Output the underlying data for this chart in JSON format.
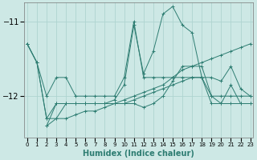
{
  "xlabel": "Humidex (Indice chaleur)",
  "bg_color": "#cde8e5",
  "grid_color": "#aed4d0",
  "line_color": "#2e7d72",
  "x_ticks": [
    0,
    1,
    2,
    3,
    4,
    5,
    6,
    7,
    8,
    9,
    10,
    11,
    12,
    13,
    14,
    15,
    16,
    17,
    18,
    19,
    20,
    21,
    22,
    23
  ],
  "ylim": [
    -12.55,
    -10.75
  ],
  "xlim": [
    -0.3,
    23.3
  ],
  "series": [
    {
      "x": [
        0,
        1,
        2,
        3,
        4,
        5,
        6,
        7,
        8,
        9,
        10,
        11,
        12,
        13,
        14,
        15,
        16,
        17,
        18,
        19,
        20,
        21,
        22,
        23
      ],
      "y": [
        -11.3,
        -11.55,
        -12.0,
        -11.75,
        -11.75,
        -12.0,
        -12.0,
        -12.0,
        -12.0,
        -12.0,
        -11.75,
        -11.0,
        -11.75,
        -11.75,
        -11.75,
        -11.75,
        -11.75,
        -11.75,
        -11.75,
        -12.0,
        -12.0,
        -12.0,
        -12.0,
        -12.0
      ]
    },
    {
      "x": [
        0,
        1,
        2,
        3,
        4,
        5,
        6,
        7,
        8,
        9,
        10,
        11,
        12,
        13,
        14,
        15,
        16,
        17,
        18,
        19,
        20,
        21,
        22,
        23
      ],
      "y": [
        -11.3,
        -11.55,
        -12.3,
        -12.3,
        -12.1,
        -12.1,
        -12.1,
        -12.1,
        -12.1,
        -12.05,
        -11.85,
        -11.05,
        -11.7,
        -11.4,
        -10.9,
        -10.8,
        -11.05,
        -11.15,
        -11.75,
        -12.1,
        -12.1,
        -11.85,
        -12.1,
        -12.1
      ]
    },
    {
      "x": [
        2,
        3,
        4,
        5,
        6,
        7,
        8,
        9,
        10,
        11,
        12,
        13,
        14,
        15,
        16,
        17,
        18,
        19,
        20,
        21,
        22,
        23
      ],
      "y": [
        -12.4,
        -12.3,
        -12.3,
        -12.25,
        -12.2,
        -12.2,
        -12.15,
        -12.1,
        -12.05,
        -12.0,
        -11.95,
        -11.9,
        -11.85,
        -11.75,
        -11.65,
        -11.6,
        -11.55,
        -11.5,
        -11.45,
        -11.4,
        -11.35,
        -11.3
      ]
    },
    {
      "x": [
        0,
        1,
        2,
        3,
        4,
        5,
        6,
        7,
        8,
        9,
        10,
        11,
        12,
        13,
        14,
        15,
        16,
        17,
        18,
        19,
        20,
        21,
        22,
        23
      ],
      "y": [
        -11.3,
        -11.55,
        -12.3,
        -12.1,
        -12.1,
        -12.1,
        -12.1,
        -12.1,
        -12.1,
        -12.1,
        -12.1,
        -12.1,
        -12.15,
        -12.1,
        -12.0,
        -11.8,
        -11.6,
        -11.6,
        -11.6,
        -12.0,
        -12.1,
        -12.1,
        -12.1,
        -12.1
      ]
    },
    {
      "x": [
        2,
        3,
        4,
        5,
        6,
        7,
        8,
        9,
        10,
        11,
        12,
        13,
        14,
        15,
        16,
        17,
        18,
        19,
        20,
        21,
        22,
        23
      ],
      "y": [
        -12.4,
        -12.1,
        -12.1,
        -12.1,
        -12.1,
        -12.1,
        -12.1,
        -12.1,
        -12.1,
        -12.05,
        -12.0,
        -11.95,
        -11.9,
        -11.85,
        -11.8,
        -11.75,
        -11.75,
        -11.75,
        -11.8,
        -11.6,
        -11.9,
        -12.0
      ]
    }
  ]
}
